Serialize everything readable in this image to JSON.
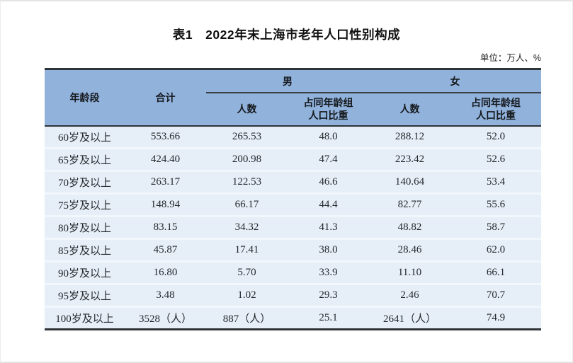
{
  "page": {
    "title": "表1　2022年末上海市老年人口性别构成",
    "unit_note": "单位：万人、%"
  },
  "table": {
    "columns": {
      "age_group": "年龄段",
      "total": "合计",
      "male": "男",
      "female": "女",
      "count": "人数",
      "share": "占同年龄组\n人口比重"
    },
    "rows": [
      [
        "60岁及以上",
        "553.66",
        "265.53",
        "48.0",
        "288.12",
        "52.0"
      ],
      [
        "65岁及以上",
        "424.40",
        "200.98",
        "47.4",
        "223.42",
        "52.6"
      ],
      [
        "70岁及以上",
        "263.17",
        "122.53",
        "46.6",
        "140.64",
        "53.4"
      ],
      [
        "75岁及以上",
        "148.94",
        "66.17",
        "44.4",
        "82.77",
        "55.6"
      ],
      [
        "80岁及以上",
        "83.15",
        "34.32",
        "41.3",
        "48.82",
        "58.7"
      ],
      [
        "85岁及以上",
        "45.87",
        "17.41",
        "38.0",
        "28.46",
        "62.0"
      ],
      [
        "90岁及以上",
        "16.80",
        "5.70",
        "33.9",
        "11.10",
        "66.1"
      ],
      [
        "95岁及以上",
        "3.48",
        "1.02",
        "29.3",
        "2.46",
        "70.7"
      ],
      [
        "100岁及以上",
        "3528（人）",
        "887（人）",
        "25.1",
        "2641（人）",
        "74.9"
      ]
    ]
  },
  "colors": {
    "header_bg": "#90b2db",
    "row_bg": "#e6eff8",
    "row_separator": "#f2f7fc",
    "dark_rule": "#2e3338",
    "title_text": "#111111"
  }
}
